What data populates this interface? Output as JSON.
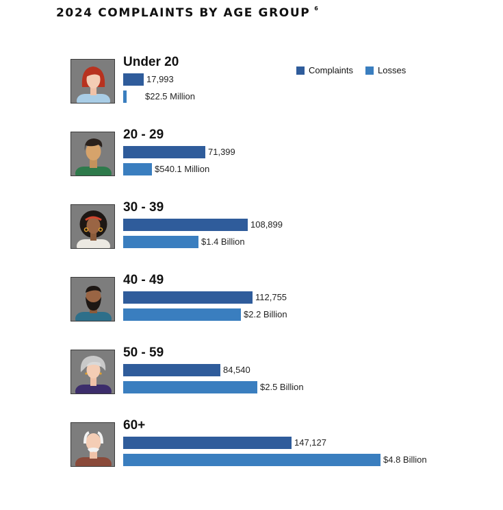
{
  "title": "2024 COMPLAINTS BY AGE GROUP",
  "footnote": "6",
  "legend": [
    {
      "label": "Complaints",
      "color": "#2f5c9b"
    },
    {
      "label": "Losses",
      "color": "#3a7ebf"
    }
  ],
  "chart_data": {
    "type": "bar",
    "orientation": "horizontal",
    "title": "2024 COMPLAINTS BY AGE GROUP",
    "categories": [
      "Under 20",
      "20 - 29",
      "30 - 39",
      "40 - 49",
      "50 - 59",
      "60+"
    ],
    "series": [
      {
        "name": "Complaints",
        "color": "#2f5c9b",
        "values": [
          17993,
          71399,
          108899,
          112755,
          84540,
          147127
        ],
        "labels": [
          "17,993",
          "71,399",
          "108,899",
          "112,755",
          "84,540",
          "147,127"
        ]
      },
      {
        "name": "Losses",
        "color": "#3a7ebf",
        "unit": "USD millions",
        "values": [
          22.5,
          540.1,
          1400,
          2200,
          2500,
          4800
        ],
        "labels": [
          "$22.5 Million",
          "$540.1 Million",
          "$1.4 Billion",
          "$2.2 Billion",
          "$2.5 Billion",
          "$4.8 Billion"
        ]
      }
    ],
    "legend_position": "top-right"
  },
  "avatars": [
    "red-haired-young-person-icon",
    "young-man-icon",
    "curly-haired-woman-icon",
    "bearded-man-icon",
    "gray-haired-woman-icon",
    "elderly-man-icon"
  ]
}
